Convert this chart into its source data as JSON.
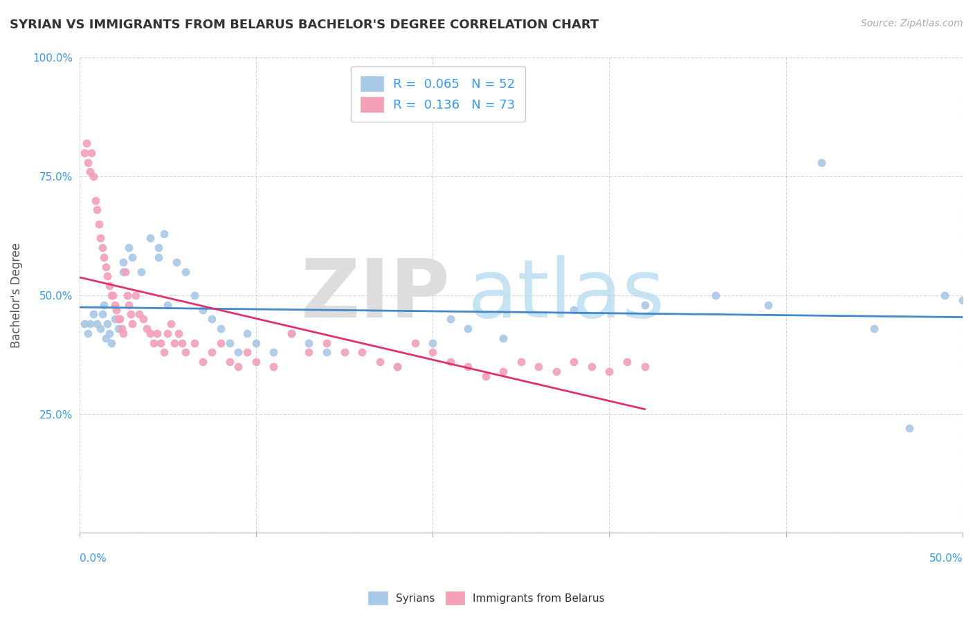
{
  "title": "SYRIAN VS IMMIGRANTS FROM BELARUS BACHELOR'S DEGREE CORRELATION CHART",
  "source": "Source: ZipAtlas.com",
  "ylabel": "Bachelor's Degree",
  "xlim": [
    0.0,
    0.5
  ],
  "ylim": [
    0.0,
    1.0
  ],
  "yticks": [
    0.0,
    0.25,
    0.5,
    0.75,
    1.0
  ],
  "ytick_labels": [
    "",
    "25.0%",
    "50.0%",
    "75.0%",
    "100.0%"
  ],
  "syrians_color": "#a8c8e8",
  "belarus_color": "#f4a0b8",
  "trend_blue": "#4488cc",
  "trend_pink": "#e03070",
  "trend_gray": "#bbbbbb",
  "syrians_x": [
    0.003,
    0.005,
    0.006,
    0.008,
    0.01,
    0.012,
    0.013,
    0.014,
    0.015,
    0.016,
    0.017,
    0.018,
    0.02,
    0.022,
    0.025,
    0.025,
    0.028,
    0.03,
    0.035,
    0.04,
    0.045,
    0.045,
    0.048,
    0.05,
    0.055,
    0.06,
    0.065,
    0.07,
    0.075,
    0.08,
    0.085,
    0.09,
    0.095,
    0.1,
    0.11,
    0.12,
    0.13,
    0.14,
    0.18,
    0.2,
    0.21,
    0.22,
    0.24,
    0.28,
    0.32,
    0.36,
    0.39,
    0.42,
    0.45,
    0.47,
    0.49,
    0.5
  ],
  "syrians_y": [
    0.44,
    0.42,
    0.44,
    0.46,
    0.44,
    0.43,
    0.46,
    0.48,
    0.41,
    0.44,
    0.42,
    0.4,
    0.45,
    0.43,
    0.55,
    0.57,
    0.6,
    0.58,
    0.55,
    0.62,
    0.6,
    0.58,
    0.63,
    0.48,
    0.57,
    0.55,
    0.5,
    0.47,
    0.45,
    0.43,
    0.4,
    0.38,
    0.42,
    0.4,
    0.38,
    0.42,
    0.4,
    0.38,
    0.35,
    0.4,
    0.45,
    0.43,
    0.41,
    0.47,
    0.48,
    0.5,
    0.48,
    0.78,
    0.43,
    0.22,
    0.5,
    0.49
  ],
  "belarus_x": [
    0.003,
    0.004,
    0.005,
    0.006,
    0.007,
    0.008,
    0.009,
    0.01,
    0.011,
    0.012,
    0.013,
    0.014,
    0.015,
    0.016,
    0.017,
    0.018,
    0.019,
    0.02,
    0.021,
    0.022,
    0.023,
    0.024,
    0.025,
    0.026,
    0.027,
    0.028,
    0.029,
    0.03,
    0.032,
    0.034,
    0.036,
    0.038,
    0.04,
    0.042,
    0.044,
    0.046,
    0.048,
    0.05,
    0.052,
    0.054,
    0.056,
    0.058,
    0.06,
    0.065,
    0.07,
    0.075,
    0.08,
    0.085,
    0.09,
    0.095,
    0.1,
    0.11,
    0.12,
    0.13,
    0.14,
    0.15,
    0.16,
    0.17,
    0.18,
    0.19,
    0.2,
    0.21,
    0.22,
    0.23,
    0.24,
    0.25,
    0.26,
    0.27,
    0.28,
    0.29,
    0.3,
    0.31,
    0.32
  ],
  "belarus_y": [
    0.8,
    0.82,
    0.78,
    0.76,
    0.8,
    0.75,
    0.7,
    0.68,
    0.65,
    0.62,
    0.6,
    0.58,
    0.56,
    0.54,
    0.52,
    0.5,
    0.5,
    0.48,
    0.47,
    0.45,
    0.45,
    0.43,
    0.42,
    0.55,
    0.5,
    0.48,
    0.46,
    0.44,
    0.5,
    0.46,
    0.45,
    0.43,
    0.42,
    0.4,
    0.42,
    0.4,
    0.38,
    0.42,
    0.44,
    0.4,
    0.42,
    0.4,
    0.38,
    0.4,
    0.36,
    0.38,
    0.4,
    0.36,
    0.35,
    0.38,
    0.36,
    0.35,
    0.42,
    0.38,
    0.4,
    0.38,
    0.38,
    0.36,
    0.35,
    0.4,
    0.38,
    0.36,
    0.35,
    0.33,
    0.34,
    0.36,
    0.35,
    0.34,
    0.36,
    0.35,
    0.34,
    0.36,
    0.35
  ]
}
